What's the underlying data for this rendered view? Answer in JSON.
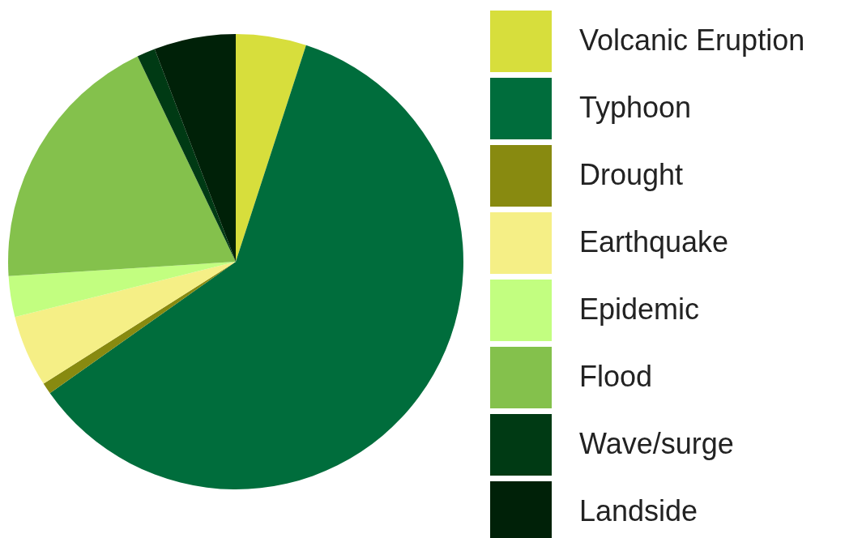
{
  "chart_data": {
    "type": "pie",
    "categories": [
      "Volcanic Eruption",
      "Typhoon",
      "Drought",
      "Earthquake",
      "Epidemic",
      "Flood",
      "Wave/surge",
      "Landside"
    ],
    "values": [
      5,
      60.2,
      0.8,
      5.1,
      2.9,
      18.9,
      1.3,
      5.8
    ],
    "colors": [
      "#d7de3c",
      "#006d3c",
      "#888a10",
      "#f5ef86",
      "#c2fe80",
      "#84c14c",
      "#003a14",
      "#002108"
    ],
    "legend": "right"
  }
}
